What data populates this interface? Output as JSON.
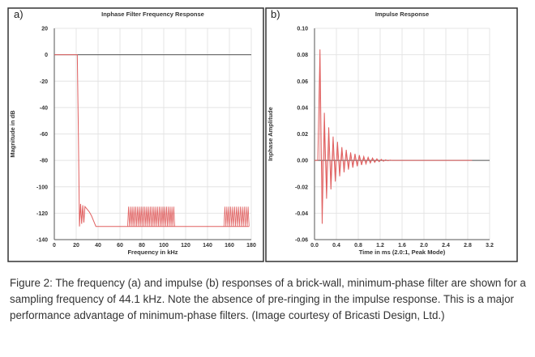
{
  "chart_data": [
    {
      "type": "line",
      "panel_label": "a)",
      "title": "Inphase Filter Frequency Response",
      "xlabel": "Frequency in kHz",
      "ylabel": "Magnitude in dB",
      "xlim": [
        0,
        180
      ],
      "ylim": [
        -140,
        20
      ],
      "xticks": [
        "0",
        "20",
        "40",
        "60",
        "80",
        "100",
        "120",
        "140",
        "160",
        "180"
      ],
      "yticks": [
        "20",
        "0",
        "-20",
        "-40",
        "-60",
        "-80",
        "-100",
        "-120",
        "-140"
      ],
      "grid": true,
      "series": [
        {
          "name": "response",
          "color": "#e06060",
          "points": [
            [
              0,
              0
            ],
            [
              21,
              0
            ],
            [
              22,
              -60
            ],
            [
              23,
              -130
            ],
            [
              24,
              -113
            ],
            [
              25,
              -128
            ],
            [
              26,
              -114
            ],
            [
              27,
              -127
            ],
            [
              28,
              -115
            ],
            [
              30,
              -117
            ],
            [
              32,
              -119
            ],
            [
              34,
              -122
            ],
            [
              36,
              -126
            ],
            [
              38,
              -130
            ],
            [
              67,
              -130
            ],
            [
              110,
              -130
            ],
            [
              112,
              -130
            ],
            [
              155,
              -130
            ],
            [
              178,
              -130
            ]
          ],
          "ripple_bands": [
            {
              "from": 67,
              "to": 110,
              "min": -130,
              "max": -115,
              "count": 26
            },
            {
              "from": 155,
              "to": 178,
              "min": -130,
              "max": -115,
              "count": 13
            }
          ]
        }
      ]
    },
    {
      "type": "line",
      "panel_label": "b)",
      "title": "Impulse Response",
      "xlabel": "Time in ms (2.0:1, Peak Mode)",
      "ylabel": "Inphase Amplitude",
      "xlim": [
        0,
        3.2
      ],
      "ylim": [
        -0.06,
        0.1
      ],
      "xticks": [
        "0.0",
        "0.4",
        "0.8",
        "1.2",
        "1.6",
        "2.0",
        "2.4",
        "2.8",
        "3.2"
      ],
      "yticks": [
        "0.10",
        "0.08",
        "0.06",
        "0.04",
        "0.02",
        "0.00",
        "-0.02",
        "-0.04",
        "-0.06"
      ],
      "grid": true,
      "series": [
        {
          "name": "impulse",
          "color": "#e06060",
          "t_start": 0.06,
          "t_step": 0.04,
          "values": [
            0.0,
            0.084,
            -0.048,
            0.036,
            -0.029,
            0.025,
            -0.022,
            0.018,
            -0.016,
            0.014,
            -0.012,
            0.01,
            -0.009,
            0.008,
            -0.007,
            0.006,
            -0.0055,
            0.005,
            -0.0045,
            0.004,
            -0.0035,
            0.003,
            -0.0027,
            0.0024,
            -0.002,
            0.0018,
            -0.0015,
            0.0012,
            -0.001,
            0.0008,
            -0.0006,
            0.0004,
            -0.0003,
            0.0002,
            0.0
          ]
        }
      ]
    }
  ],
  "caption": "Figure 2: The frequency (a) and impulse (b) responses of a brick-wall, minimum-phase filter are shown for a sampling frequency of 44.1 kHz. Note the absence of pre-ringing in the impulse response. This is a major performance advantage of minimum-phase filters. (Image courtesy of Bricasti Design, Ltd.)"
}
